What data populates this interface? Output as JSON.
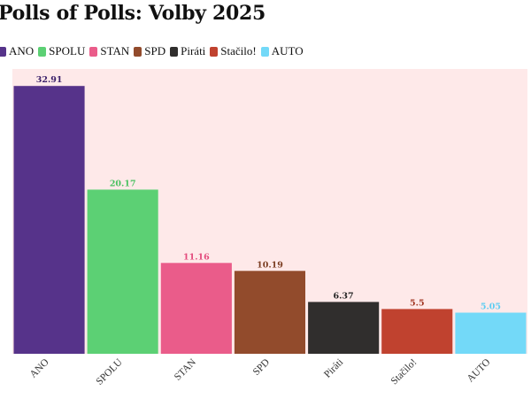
{
  "title": "Polls of Polls: Volby 2025",
  "chart_data": {
    "type": "bar",
    "title": "Polls of Polls: Volby 2025",
    "categories": [
      "ANO",
      "SPOLU",
      "STAN",
      "SPD",
      "Piráti",
      "Stačilo!",
      "AUTO"
    ],
    "values": [
      32.91,
      20.17,
      11.16,
      10.19,
      6.37,
      5.5,
      5.05
    ],
    "colors": [
      "#56338a",
      "#5cd074",
      "#ea5c8a",
      "#924b2c",
      "#302e2d",
      "#c0422f",
      "#73d9f8"
    ],
    "label_colors": [
      "#3a1f69",
      "#48c160",
      "#e34a7c",
      "#7b3d22",
      "#222222",
      "#a33a27",
      "#5ecdf2"
    ],
    "legend": [
      "ANO",
      "SPOLU",
      "STAN",
      "SPD",
      "Piráti",
      "Stačilo!",
      "AUTO"
    ],
    "legend_position": "top-left",
    "ylim": [
      0,
      35
    ],
    "grid": false,
    "plot_background": "#fee9e9",
    "xlabel": "",
    "ylabel": ""
  }
}
